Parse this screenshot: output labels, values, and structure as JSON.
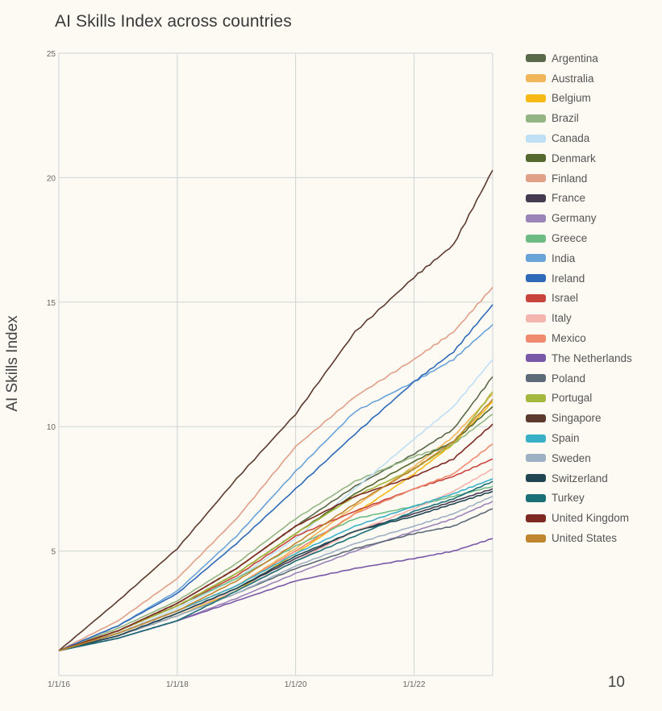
{
  "title": "AI Skills Index across countries",
  "page_number": "10",
  "chart_data": {
    "type": "line",
    "title": "AI Skills Index across countries",
    "xlabel": "",
    "ylabel": "AI Skills Index",
    "x_ticks": [
      "1/1/16",
      "1/1/18",
      "1/1/20",
      "1/1/22"
    ],
    "x": [
      "1/1/16",
      "1/1/17",
      "1/1/18",
      "1/1/19",
      "1/1/20",
      "1/1/21",
      "1/1/22",
      "9/1/22",
      "5/1/23"
    ],
    "ylim": [
      0,
      25
    ],
    "y_ticks": [
      5,
      10,
      15,
      20,
      25
    ],
    "grid": true,
    "legend_position": "right",
    "series": [
      {
        "name": "Argentina",
        "color": "#59694a",
        "values": [
          1.0,
          1.8,
          2.9,
          4.3,
          6.0,
          7.6,
          8.9,
          9.9,
          12.0
        ]
      },
      {
        "name": "Australia",
        "color": "#f0b659",
        "values": [
          1.0,
          1.7,
          2.6,
          3.6,
          5.1,
          6.8,
          8.4,
          9.6,
          11.3
        ]
      },
      {
        "name": "Belgium",
        "color": "#f6b915",
        "values": [
          1.0,
          1.6,
          2.4,
          3.4,
          4.9,
          6.5,
          8.1,
          9.3,
          11.0
        ]
      },
      {
        "name": "Brazil",
        "color": "#93b583",
        "values": [
          1.0,
          1.9,
          3.0,
          4.5,
          6.3,
          7.8,
          8.8,
          9.3,
          10.5
        ]
      },
      {
        "name": "Canada",
        "color": "#bfdff5",
        "values": [
          1.0,
          1.7,
          2.7,
          3.9,
          5.5,
          7.5,
          9.5,
          10.8,
          12.7
        ]
      },
      {
        "name": "Denmark",
        "color": "#55692e",
        "values": [
          1.0,
          1.8,
          2.8,
          4.1,
          5.7,
          7.3,
          8.6,
          9.4,
          10.8
        ]
      },
      {
        "name": "Finland",
        "color": "#e0a088",
        "values": [
          1.0,
          2.2,
          3.9,
          6.3,
          9.2,
          11.2,
          12.7,
          13.8,
          15.6
        ]
      },
      {
        "name": "France",
        "color": "#443a52",
        "values": [
          1.0,
          1.6,
          2.5,
          3.5,
          4.7,
          5.8,
          6.5,
          7.0,
          7.5
        ]
      },
      {
        "name": "Germany",
        "color": "#9b84b8",
        "values": [
          1.0,
          1.5,
          2.2,
          3.1,
          4.1,
          5.0,
          5.8,
          6.3,
          7.0
        ]
      },
      {
        "name": "Greece",
        "color": "#6fbb86",
        "values": [
          1.0,
          1.8,
          2.8,
          3.9,
          5.2,
          6.3,
          6.8,
          7.2,
          7.6
        ]
      },
      {
        "name": "India",
        "color": "#6aa3d8",
        "values": [
          1.0,
          2.0,
          3.4,
          5.6,
          8.2,
          10.6,
          11.8,
          12.7,
          14.1
        ]
      },
      {
        "name": "Ireland",
        "color": "#2f6ab8",
        "values": [
          1.0,
          2.0,
          3.3,
          5.3,
          7.5,
          9.7,
          11.8,
          13.0,
          14.9
        ]
      },
      {
        "name": "Israel",
        "color": "#c7453c",
        "values": [
          1.0,
          1.8,
          2.8,
          4.0,
          5.6,
          6.6,
          7.5,
          8.0,
          8.7
        ]
      },
      {
        "name": "Italy",
        "color": "#f3b5ad",
        "values": [
          1.0,
          1.6,
          2.5,
          3.4,
          4.6,
          5.8,
          6.7,
          7.4,
          8.3
        ]
      },
      {
        "name": "Mexico",
        "color": "#ef8a6f",
        "values": [
          1.0,
          1.7,
          2.6,
          3.6,
          5.0,
          6.5,
          7.5,
          8.1,
          9.3
        ]
      },
      {
        "name": "The Netherlands",
        "color": "#7a58a8",
        "values": [
          1.0,
          1.5,
          2.2,
          3.0,
          3.8,
          4.3,
          4.7,
          5.0,
          5.5
        ]
      },
      {
        "name": "Poland",
        "color": "#5d6a78",
        "values": [
          1.0,
          1.6,
          2.4,
          3.3,
          4.3,
          5.1,
          5.7,
          6.0,
          6.7
        ]
      },
      {
        "name": "Portugal",
        "color": "#a3b83c",
        "values": [
          1.0,
          1.8,
          2.8,
          4.1,
          5.7,
          7.2,
          8.3,
          9.3,
          11.4
        ]
      },
      {
        "name": "Singapore",
        "color": "#5c3a2e",
        "values": [
          1.0,
          3.0,
          5.1,
          7.9,
          10.5,
          13.8,
          16.0,
          17.3,
          20.3
        ]
      },
      {
        "name": "Spain",
        "color": "#3ab0c7",
        "values": [
          1.0,
          1.7,
          2.6,
          3.6,
          4.9,
          6.0,
          6.8,
          7.3,
          7.9
        ]
      },
      {
        "name": "Sweden",
        "color": "#9eb0c4",
        "values": [
          1.0,
          1.6,
          2.4,
          3.3,
          4.4,
          5.3,
          6.0,
          6.5,
          7.2
        ]
      },
      {
        "name": "Switzerland",
        "color": "#1f4652",
        "values": [
          1.0,
          1.6,
          2.5,
          3.5,
          4.8,
          5.8,
          6.4,
          6.9,
          7.4
        ]
      },
      {
        "name": "Turkey",
        "color": "#1b7077",
        "values": [
          1.0,
          1.5,
          2.2,
          3.4,
          4.6,
          5.6,
          6.6,
          7.1,
          7.8
        ]
      },
      {
        "name": "United Kingdom",
        "color": "#7e2a22",
        "values": [
          1.0,
          1.8,
          2.9,
          4.3,
          6.0,
          7.2,
          8.0,
          8.7,
          10.1
        ]
      },
      {
        "name": "United States",
        "color": "#c0862f",
        "values": [
          1.0,
          1.7,
          2.6,
          3.8,
          5.3,
          6.9,
          8.3,
          9.4,
          11.1
        ]
      }
    ]
  }
}
